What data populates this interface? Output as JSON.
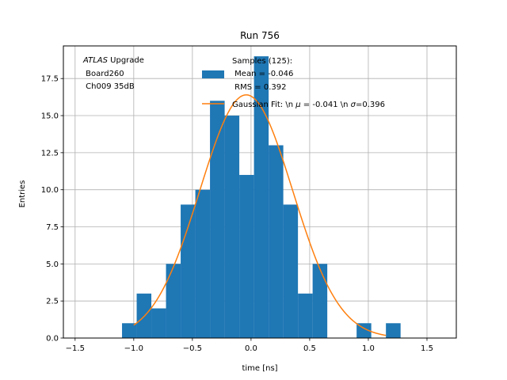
{
  "chart_data": {
    "type": "bar",
    "title": "Run 756",
    "xlabel": "time [ns]",
    "ylabel": "Entries",
    "xlim": [
      -1.6,
      1.75
    ],
    "ylim": [
      0,
      19.7
    ],
    "grid": true,
    "xticks": [
      -1.5,
      -1.0,
      -0.5,
      0.0,
      0.5,
      1.0,
      1.5
    ],
    "xtick_labels": [
      "−1.5",
      "−1.0",
      "−0.5",
      "0.0",
      "0.5",
      "1.0",
      "1.5"
    ],
    "yticks": [
      0.0,
      2.5,
      5.0,
      7.5,
      10.0,
      12.5,
      15.0,
      17.5
    ],
    "ytick_labels": [
      "0.0",
      "2.5",
      "5.0",
      "7.5",
      "10.0",
      "12.5",
      "15.0",
      "17.5"
    ],
    "histogram": {
      "bin_width": 0.125,
      "bins": [
        {
          "left": -1.1,
          "count": 1
        },
        {
          "left": -0.975,
          "count": 3
        },
        {
          "left": -0.85,
          "count": 2
        },
        {
          "left": -0.725,
          "count": 5
        },
        {
          "left": -0.6,
          "count": 9
        },
        {
          "left": -0.475,
          "count": 10
        },
        {
          "left": -0.35,
          "count": 16
        },
        {
          "left": -0.225,
          "count": 15
        },
        {
          "left": -0.1,
          "count": 11
        },
        {
          "left": 0.025,
          "count": 19
        },
        {
          "left": 0.15,
          "count": 13
        },
        {
          "left": 0.275,
          "count": 9
        },
        {
          "left": 0.4,
          "count": 3
        },
        {
          "left": 0.525,
          "count": 5
        },
        {
          "left": 0.9,
          "count": 1
        },
        {
          "left": 1.15,
          "count": 1
        }
      ],
      "color": "#1f77b4"
    },
    "fit": {
      "type": "gaussian",
      "amplitude": 16.4,
      "mu": -0.041,
      "sigma": 0.396,
      "x_range": [
        -1.0,
        1.15
      ],
      "color": "#ff7f0e"
    },
    "legend": {
      "placement": "top-right",
      "samples_text": "Samples (125):",
      "mean_text": " Mean = -0.046",
      "rms_text": " RMS = 0.392",
      "fit_label_prefix": "Gaussian Fit: \\n ",
      "mu_symbol": "μ",
      "mu_value_text": " = -0.041 \\n ",
      "sigma_symbol": "σ",
      "sigma_value_text": "=0.396"
    },
    "annotation": {
      "placement": "top-left",
      "experiment": "ATLAS",
      "experiment_suffix": " Upgrade",
      "board": " Board260",
      "channel": " Ch009 35dB"
    },
    "colors": {
      "grid": "#b0b0b0",
      "axis": "#000000"
    }
  }
}
